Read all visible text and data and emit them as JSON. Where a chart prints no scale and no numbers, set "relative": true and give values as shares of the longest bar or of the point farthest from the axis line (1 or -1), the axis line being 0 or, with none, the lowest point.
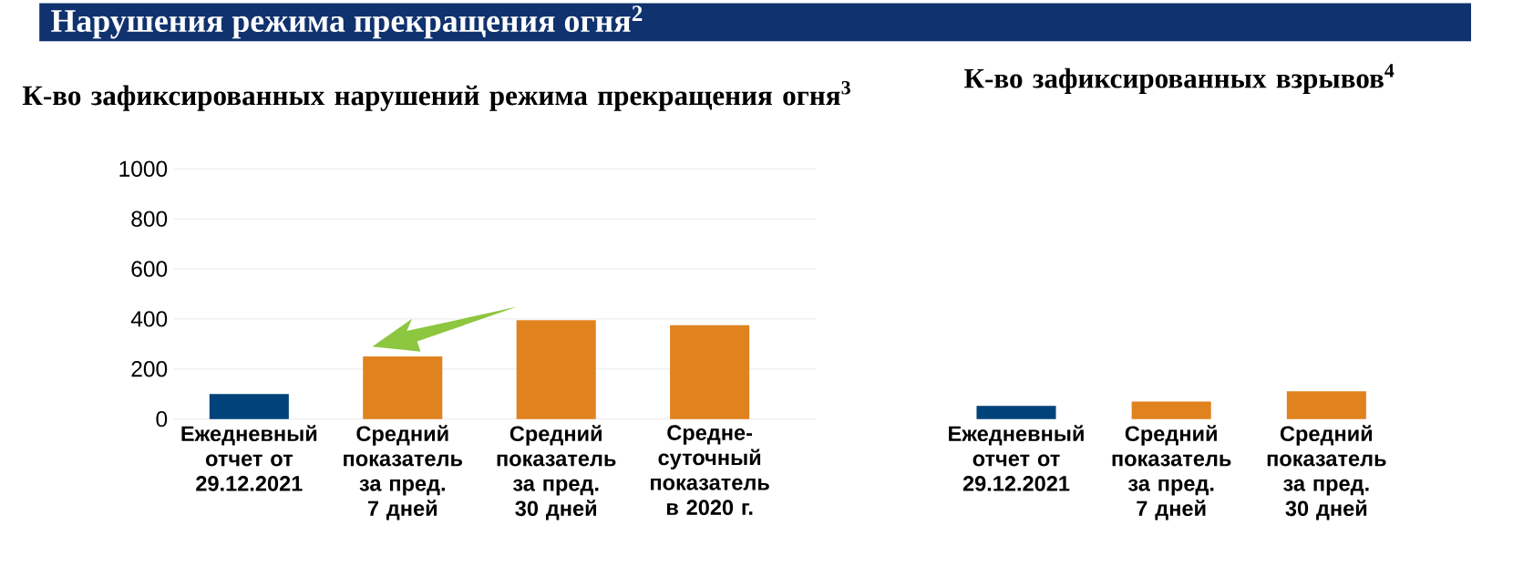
{
  "chart_data": [
    {
      "type": "bar",
      "title": "К-во зафиксированных нарушений режима прекращения огня$^{3}$",
      "annotations": [
        "Нарушения режима прекращения огня$^{2}$"
      ],
      "categories": [
        "Ежедневный отчет от 29.12.2021",
        "Средний показатель за пред. 7 дней",
        "Средний показатель за пред. 30 дней",
        "Средне-суточный показатель в 2020 г."
      ],
      "values": [
        100,
        250,
        395,
        375
      ],
      "colors": [
        "#00427a",
        "#e0821e",
        "#e0821e",
        "#e0821e"
      ],
      "ylim": [
        0,
        1000
      ],
      "yticks": [
        0,
        200,
        400,
        600,
        800,
        1000
      ],
      "grid": "y"
    },
    {
      "type": "bar",
      "title": "К-во зафиксированных взрывов$^{4}$",
      "categories": [
        "Ежедневный отчет от 29.12.2021",
        "Средний показатель за пред. 7 дней",
        "Средний показатель за пред. 30 дней"
      ],
      "values": [
        0.47,
        0.63,
        1
      ],
      "colors": [
        "#00427a",
        "#e0821e",
        "#e0821e"
      ],
      "relative": true
    }
  ]
}
